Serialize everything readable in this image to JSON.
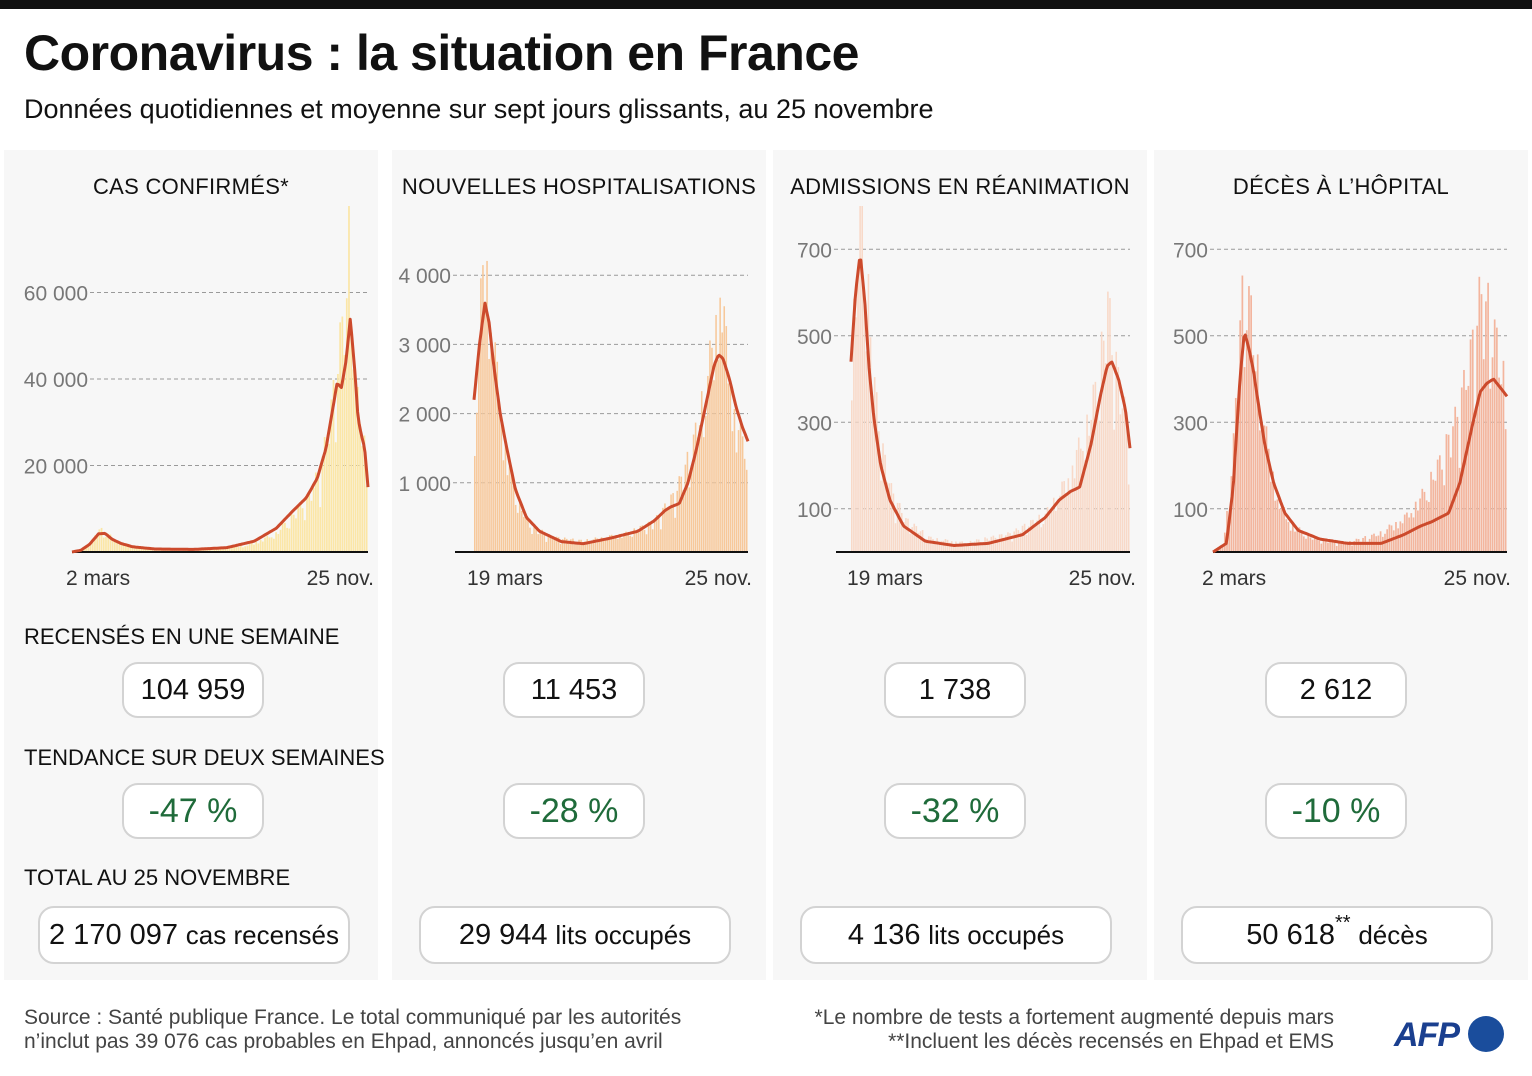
{
  "header": {
    "title": "Coronavirus : la situation en France",
    "subtitle": "Données quotidiennes et moyenne sur sept jours glissants, au 25 novembre"
  },
  "labels": {
    "weekly": "RECENSÉS EN UNE SEMAINE",
    "trend": "TENDANCE SUR DEUX SEMAINES",
    "total": "TOTAL AU 25 NOVEMBRE"
  },
  "panels": [
    {
      "title": "CAS CONFIRMÉS*",
      "weekly": "104 959",
      "trend": "-47 %",
      "total_value": "2 170 097",
      "total_unit": "cas recensés",
      "total_mark": ""
    },
    {
      "title": "NOUVELLES HOSPITALISATIONS",
      "weekly": "11 453",
      "trend": "-28 %",
      "total_value": "29 944",
      "total_unit": "lits occupés",
      "total_mark": ""
    },
    {
      "title": "ADMISSIONS EN RÉANIMATION",
      "weekly": "1 738",
      "trend": "-32 %",
      "total_value": "4 136",
      "total_unit": "lits occupés",
      "total_mark": ""
    },
    {
      "title": "DÉCÈS À L’HÔPITAL",
      "weekly": "2 612",
      "trend": "-10 %",
      "total_value": "50 618",
      "total_unit": "décès",
      "total_mark": "**"
    }
  ],
  "chart_data": [
    {
      "type": "bar",
      "title": "CAS CONFIRMÉS*",
      "x_start_label": "2 mars",
      "x_end_label": "25 nov.",
      "ylim": [
        0,
        80000
      ],
      "yticks": [
        20000,
        40000,
        60000
      ],
      "ytick_labels": [
        "20 000",
        "40 000",
        "60 000"
      ],
      "grid": true,
      "bar_color": "#fbe6a6",
      "line_color": "#cc4a2c",
      "lead_days": 0,
      "daily_knots": [
        [
          0,
          0
        ],
        [
          10,
          800
        ],
        [
          18,
          2200
        ],
        [
          25,
          5000
        ],
        [
          32,
          4000
        ],
        [
          40,
          2500
        ],
        [
          55,
          1200
        ],
        [
          70,
          600
        ],
        [
          100,
          400
        ],
        [
          130,
          600
        ],
        [
          160,
          1500
        ],
        [
          185,
          4000
        ],
        [
          200,
          8000
        ],
        [
          215,
          12000
        ],
        [
          225,
          18000
        ],
        [
          232,
          26000
        ],
        [
          238,
          36000
        ],
        [
          242,
          44000
        ],
        [
          246,
          50000
        ],
        [
          250,
          58000
        ],
        [
          252,
          78000
        ],
        [
          254,
          60000
        ],
        [
          256,
          40000
        ],
        [
          258,
          34000
        ],
        [
          262,
          28000
        ],
        [
          266,
          22000
        ],
        [
          268,
          16000
        ]
      ],
      "avg_knots": [
        [
          0,
          0
        ],
        [
          8,
          400
        ],
        [
          16,
          1800
        ],
        [
          24,
          4200
        ],
        [
          30,
          4300
        ],
        [
          36,
          3000
        ],
        [
          44,
          2000
        ],
        [
          55,
          1200
        ],
        [
          75,
          700
        ],
        [
          110,
          600
        ],
        [
          140,
          1000
        ],
        [
          165,
          2500
        ],
        [
          185,
          5500
        ],
        [
          200,
          9500
        ],
        [
          212,
          12500
        ],
        [
          222,
          17000
        ],
        [
          230,
          24000
        ],
        [
          236,
          33000
        ],
        [
          240,
          39000
        ],
        [
          244,
          38000
        ],
        [
          248,
          44000
        ],
        [
          252,
          54000
        ],
        [
          256,
          42000
        ],
        [
          259,
          31000
        ],
        [
          262,
          27000
        ],
        [
          265,
          24000
        ],
        [
          268,
          15000
        ]
      ]
    },
    {
      "type": "bar",
      "title": "NOUVELLES HOSPITALISATIONS",
      "x_start_label": "19 mars",
      "x_end_label": "25 nov.",
      "ylim": [
        0,
        5000
      ],
      "yticks": [
        1000,
        2000,
        3000,
        4000
      ],
      "ytick_labels": [
        "1 000",
        "2 000",
        "3 000",
        "4 000"
      ],
      "grid": true,
      "bar_color": "#f7c89a",
      "line_color": "#cc4a2c",
      "lead_days": 17,
      "daily_knots": [
        [
          0,
          1500
        ],
        [
          6,
          3200
        ],
        [
          10,
          4300
        ],
        [
          14,
          3400
        ],
        [
          20,
          2600
        ],
        [
          28,
          1500
        ],
        [
          38,
          800
        ],
        [
          50,
          400
        ],
        [
          70,
          200
        ],
        [
          100,
          150
        ],
        [
          140,
          250
        ],
        [
          165,
          400
        ],
        [
          185,
          800
        ],
        [
          200,
          1400
        ],
        [
          212,
          2200
        ],
        [
          222,
          3100
        ],
        [
          226,
          3700
        ],
        [
          230,
          3000
        ],
        [
          235,
          2400
        ],
        [
          240,
          1700
        ],
        [
          251,
          1500
        ]
      ],
      "avg_knots": [
        [
          0,
          2200
        ],
        [
          5,
          3000
        ],
        [
          10,
          3600
        ],
        [
          14,
          3300
        ],
        [
          18,
          2700
        ],
        [
          24,
          2000
        ],
        [
          30,
          1500
        ],
        [
          38,
          900
        ],
        [
          48,
          500
        ],
        [
          60,
          300
        ],
        [
          80,
          150
        ],
        [
          100,
          120
        ],
        [
          125,
          200
        ],
        [
          150,
          300
        ],
        [
          165,
          450
        ],
        [
          175,
          600
        ],
        [
          180,
          650
        ],
        [
          188,
          700
        ],
        [
          196,
          1000
        ],
        [
          204,
          1500
        ],
        [
          212,
          2100
        ],
        [
          220,
          2700
        ],
        [
          224,
          2850
        ],
        [
          228,
          2800
        ],
        [
          234,
          2500
        ],
        [
          240,
          2100
        ],
        [
          246,
          1800
        ],
        [
          251,
          1600
        ]
      ]
    },
    {
      "type": "bar",
      "title": "ADMISSIONS EN RÉANIMATION",
      "x_start_label": "19 mars",
      "x_end_label": "25 nov.",
      "ylim": [
        0,
        800
      ],
      "yticks": [
        100,
        300,
        500,
        700
      ],
      "ytick_labels": [
        "100",
        "300",
        "500",
        "700"
      ],
      "grid": true,
      "bar_color": "#f8d9c8",
      "line_color": "#cc4a2c",
      "lead_days": 17,
      "daily_knots": [
        [
          0,
          400
        ],
        [
          5,
          600
        ],
        [
          9,
          760
        ],
        [
          13,
          650
        ],
        [
          17,
          480
        ],
        [
          22,
          330
        ],
        [
          28,
          220
        ],
        [
          36,
          130
        ],
        [
          48,
          70
        ],
        [
          70,
          30
        ],
        [
          100,
          20
        ],
        [
          140,
          40
        ],
        [
          170,
          80
        ],
        [
          190,
          160
        ],
        [
          210,
          300
        ],
        [
          220,
          440
        ],
        [
          225,
          540
        ],
        [
          230,
          430
        ],
        [
          238,
          320
        ],
        [
          244,
          260
        ]
      ],
      "avg_knots": [
        [
          0,
          440
        ],
        [
          4,
          600
        ],
        [
          8,
          690
        ],
        [
          12,
          580
        ],
        [
          16,
          420
        ],
        [
          20,
          310
        ],
        [
          26,
          200
        ],
        [
          34,
          120
        ],
        [
          46,
          60
        ],
        [
          65,
          25
        ],
        [
          90,
          15
        ],
        [
          120,
          20
        ],
        [
          150,
          40
        ],
        [
          170,
          80
        ],
        [
          182,
          120
        ],
        [
          192,
          140
        ],
        [
          200,
          150
        ],
        [
          210,
          250
        ],
        [
          218,
          360
        ],
        [
          224,
          430
        ],
        [
          228,
          440
        ],
        [
          234,
          400
        ],
        [
          240,
          330
        ],
        [
          244,
          240
        ]
      ]
    },
    {
      "type": "bar",
      "title": "DÉCÈS À L’HÔPITAL",
      "x_start_label": "2 mars",
      "x_end_label": "25 nov.",
      "ylim": [
        0,
        800
      ],
      "yticks": [
        100,
        300,
        500,
        700
      ],
      "ytick_labels": [
        "100",
        "300",
        "500",
        "700"
      ],
      "grid": true,
      "bar_color": "#f3b59d",
      "line_color": "#cc4a2c",
      "lead_days": 0,
      "daily_knots": [
        [
          0,
          0
        ],
        [
          10,
          20
        ],
        [
          18,
          200
        ],
        [
          24,
          480
        ],
        [
          29,
          600
        ],
        [
          34,
          520
        ],
        [
          40,
          400
        ],
        [
          48,
          250
        ],
        [
          58,
          120
        ],
        [
          70,
          60
        ],
        [
          90,
          30
        ],
        [
          120,
          20
        ],
        [
          150,
          40
        ],
        [
          175,
          80
        ],
        [
          190,
          130
        ],
        [
          205,
          200
        ],
        [
          220,
          300
        ],
        [
          232,
          430
        ],
        [
          240,
          550
        ],
        [
          250,
          520
        ],
        [
          257,
          420
        ],
        [
          264,
          350
        ]
      ],
      "avg_knots": [
        [
          0,
          0
        ],
        [
          12,
          20
        ],
        [
          18,
          150
        ],
        [
          24,
          400
        ],
        [
          28,
          510
        ],
        [
          32,
          470
        ],
        [
          36,
          420
        ],
        [
          40,
          350
        ],
        [
          46,
          250
        ],
        [
          54,
          160
        ],
        [
          64,
          90
        ],
        [
          76,
          50
        ],
        [
          95,
          30
        ],
        [
          120,
          20
        ],
        [
          150,
          20
        ],
        [
          170,
          40
        ],
        [
          185,
          60
        ],
        [
          195,
          70
        ],
        [
          210,
          90
        ],
        [
          220,
          160
        ],
        [
          230,
          280
        ],
        [
          238,
          370
        ],
        [
          244,
          390
        ],
        [
          250,
          400
        ],
        [
          256,
          380
        ],
        [
          262,
          360
        ]
      ]
    }
  ],
  "footer": {
    "source_line1": "Source : Santé publique France. Le total communiqué par les autorités",
    "source_line2": "n’inclut pas 39 076 cas probables en Ehpad, annoncés jusqu’en avril",
    "note1": "*Le nombre de tests a fortement augmenté depuis mars",
    "note2": "**Incluent les décès recensés en Ehpad et EMS",
    "logo": "AFP"
  }
}
